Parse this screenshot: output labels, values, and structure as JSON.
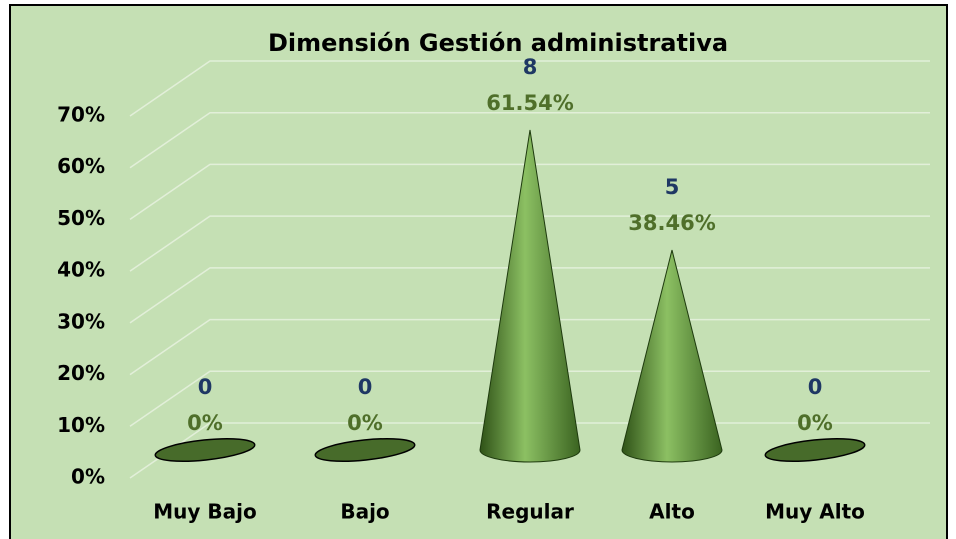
{
  "chart_data": {
    "type": "cone",
    "title": "Dimensión Gestión administrativa",
    "categories": [
      "Muy Bajo",
      "Bajo",
      "Regular",
      "Alto",
      "Muy Alto"
    ],
    "values": [
      0,
      0,
      61.54,
      38.46,
      0
    ],
    "value_labels": [
      "0%",
      "0%",
      "61.54%",
      "38.46%",
      "0%"
    ],
    "counts": [
      0,
      0,
      8,
      5,
      0
    ],
    "color": "#548235",
    "count_color": "#1f3864",
    "label_color": "#4f6f2a",
    "ylim": [
      0,
      80
    ],
    "yticks": [
      {
        "value": 0,
        "label": "0%"
      },
      {
        "value": 10,
        "label": "10%"
      },
      {
        "value": 20,
        "label": "20%"
      },
      {
        "value": 30,
        "label": "30%"
      },
      {
        "value": 40,
        "label": "40%"
      },
      {
        "value": 50,
        "label": "50%"
      },
      {
        "value": 60,
        "label": "60%"
      },
      {
        "value": 70,
        "label": "70%"
      }
    ],
    "grid": true
  }
}
